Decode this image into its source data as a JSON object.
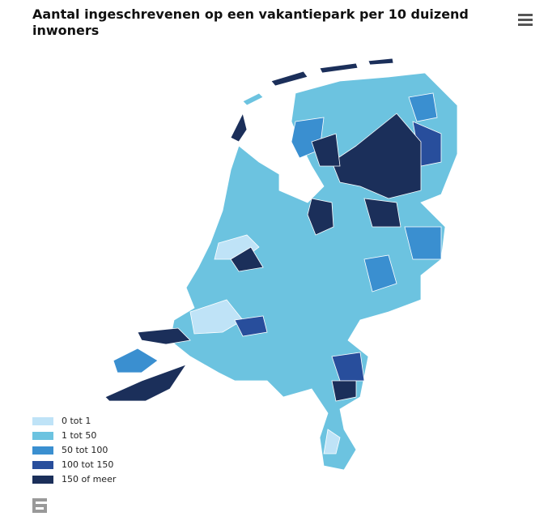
{
  "title": "Aantal ingeschrevenen op een vakantiepark per 10 duizend inwoners",
  "legend": {
    "items": [
      {
        "label": "0 tot 1",
        "color": "#bfe3f7"
      },
      {
        "label": "1 tot 50",
        "color": "#6cc3e0"
      },
      {
        "label": "50 tot 100",
        "color": "#3a8fd0"
      },
      {
        "label": "100 tot 150",
        "color": "#284e9c"
      },
      {
        "label": "150 of meer",
        "color": "#1b2f5a"
      }
    ]
  }
}
